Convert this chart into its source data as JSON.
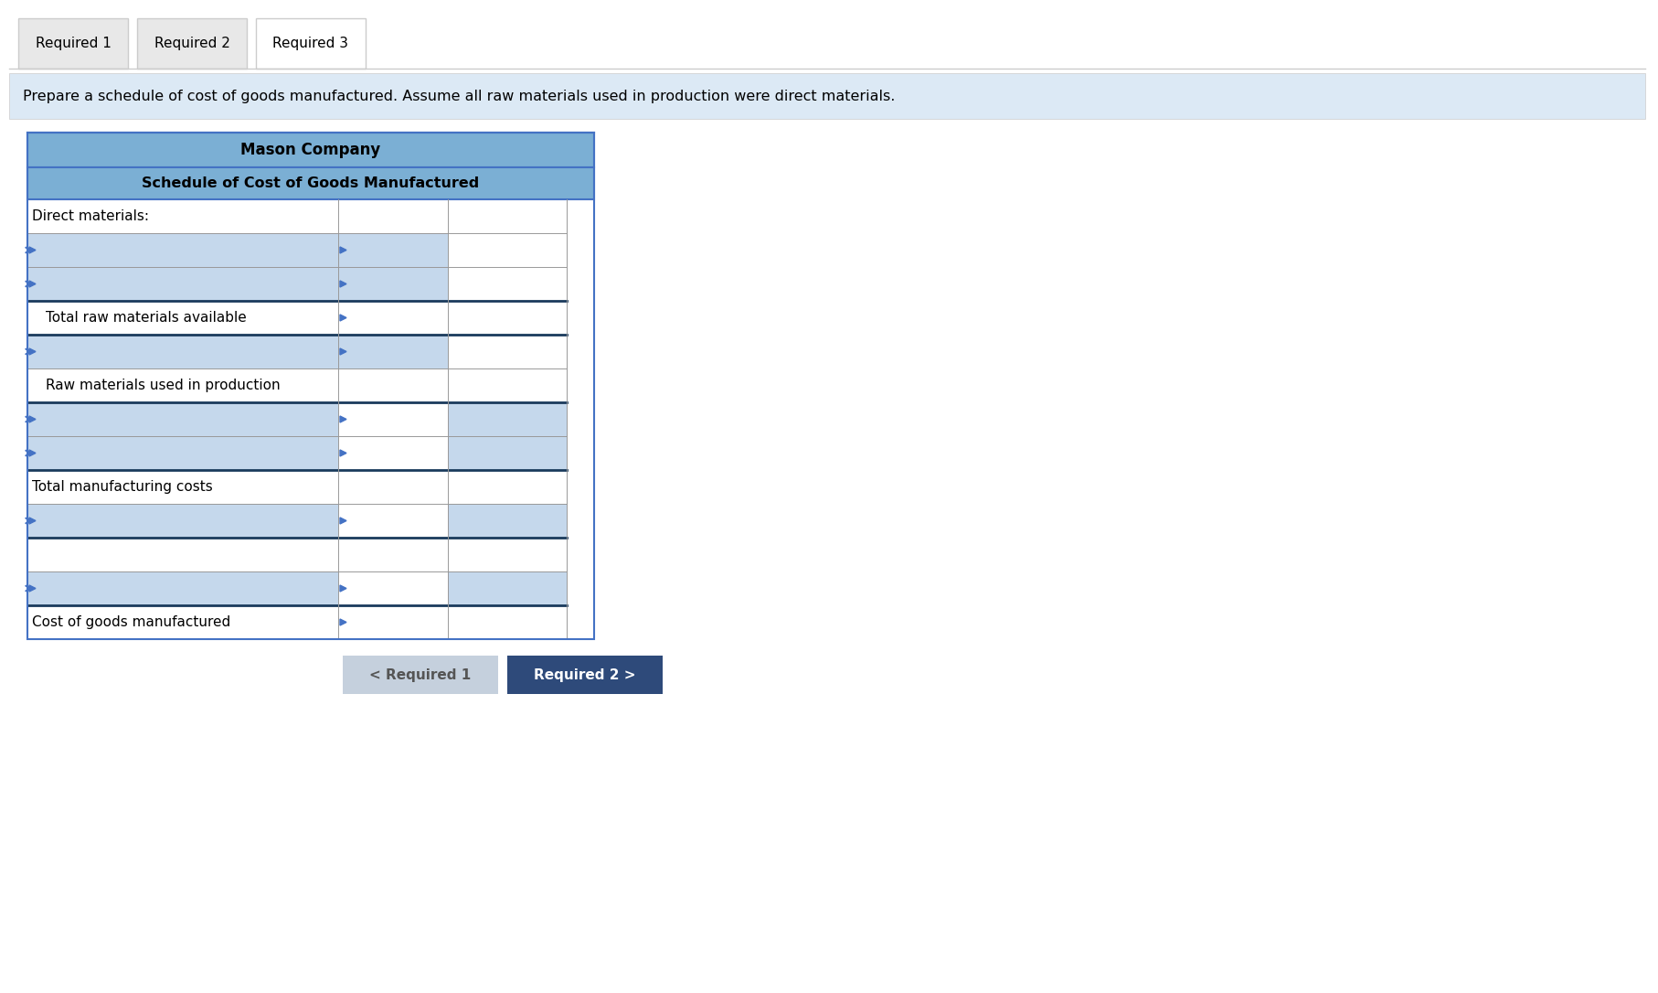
{
  "title": "Mason Company",
  "subtitle": "Schedule of Cost of Goods Manufactured",
  "instruction": "Prepare a schedule of cost of goods manufactured. Assume all raw materials used in production were direct materials.",
  "tabs": [
    "Required 1",
    "Required 2",
    "Required 3"
  ],
  "active_tab": "Required 3",
  "rows": [
    {
      "label": "Direct materials:",
      "col1": false,
      "col2": false,
      "bold_label": false,
      "indent": 0,
      "highlight": false,
      "has_arrow_col0": false,
      "has_arrow_col1": false,
      "thick_bottom": false
    },
    {
      "label": "",
      "col1": true,
      "col2": false,
      "bold_label": false,
      "indent": 0,
      "highlight": true,
      "has_arrow_col0": true,
      "has_arrow_col1": true,
      "thick_bottom": false
    },
    {
      "label": "",
      "col1": true,
      "col2": false,
      "bold_label": false,
      "indent": 0,
      "highlight": true,
      "has_arrow_col0": true,
      "has_arrow_col1": true,
      "thick_bottom": true
    },
    {
      "label": "  Total raw materials available",
      "col1": true,
      "col2": false,
      "bold_label": false,
      "indent": 1,
      "highlight": false,
      "has_arrow_col0": false,
      "has_arrow_col1": true,
      "thick_bottom": true
    },
    {
      "label": "",
      "col1": true,
      "col2": false,
      "bold_label": false,
      "indent": 0,
      "highlight": true,
      "has_arrow_col0": true,
      "has_arrow_col1": true,
      "thick_bottom": false
    },
    {
      "label": "  Raw materials used in production",
      "col1": false,
      "col2": true,
      "bold_label": false,
      "indent": 1,
      "highlight": false,
      "has_arrow_col0": false,
      "has_arrow_col1": false,
      "thick_bottom": true
    },
    {
      "label": "",
      "col1": false,
      "col2": true,
      "bold_label": false,
      "indent": 0,
      "highlight": true,
      "has_arrow_col0": true,
      "has_arrow_col1": true,
      "thick_bottom": false
    },
    {
      "label": "",
      "col1": false,
      "col2": true,
      "bold_label": false,
      "indent": 0,
      "highlight": true,
      "has_arrow_col0": true,
      "has_arrow_col1": true,
      "thick_bottom": true
    },
    {
      "label": "Total manufacturing costs",
      "col1": false,
      "col2": true,
      "bold_label": false,
      "indent": 0,
      "highlight": false,
      "has_arrow_col0": false,
      "has_arrow_col1": false,
      "thick_bottom": false
    },
    {
      "label": "",
      "col1": false,
      "col2": true,
      "bold_label": false,
      "indent": 0,
      "highlight": true,
      "has_arrow_col0": true,
      "has_arrow_col1": true,
      "thick_bottom": true
    },
    {
      "label": "",
      "col1": false,
      "col2": false,
      "bold_label": false,
      "indent": 0,
      "highlight": false,
      "has_arrow_col0": false,
      "has_arrow_col1": false,
      "thick_bottom": false
    },
    {
      "label": "",
      "col1": false,
      "col2": true,
      "bold_label": false,
      "indent": 0,
      "highlight": true,
      "has_arrow_col0": true,
      "has_arrow_col1": true,
      "thick_bottom": true
    },
    {
      "label": "Cost of goods manufactured",
      "col1": false,
      "col2": true,
      "bold_label": false,
      "indent": 0,
      "highlight": false,
      "has_arrow_col0": false,
      "has_arrow_col1": true,
      "thick_bottom": false
    }
  ],
  "colors": {
    "header_bg": "#7bafd4",
    "highlight_row_bg": "#c5d8ec",
    "tab_active_bg": "#ffffff",
    "tab_inactive_bg": "#e8e8e8",
    "tab_border": "#cccccc",
    "instruction_bg": "#dce9f5",
    "table_border": "#4472c4",
    "thick_line": "#1a3a5c",
    "cell_border": "#999999",
    "arrow_color": "#4472c4",
    "button_req1_bg": "#c5d0dd",
    "button_req2_bg": "#2e4a7a",
    "button_text_light": "#ffffff",
    "button_text_dark": "#555555",
    "background": "#ffffff"
  }
}
